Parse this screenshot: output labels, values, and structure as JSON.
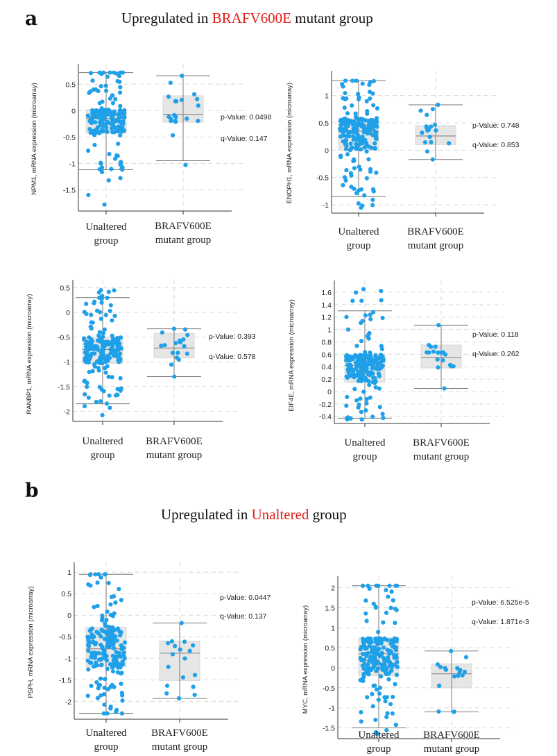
{
  "sections": [
    {
      "letter": "a",
      "title_pre": "Upregulated in ",
      "title_hl": "BRAFV600E",
      "title_post": " mutant group"
    },
    {
      "letter": "b",
      "title_pre": "Upregulated in ",
      "title_hl": "Unaltered",
      "title_post": " group"
    }
  ],
  "colors": {
    "point": "#1fa0e8",
    "box": "#e6e6e6",
    "whisker": "#777777",
    "highlight": "#e0201b",
    "grid": "#d9d9d9"
  },
  "chart_data": [
    {
      "type": "box-strip",
      "ylabel": "NPM1, mRNA expression (microarray)",
      "categories": [
        "Unaltered group",
        "BRAFV600E mutant group"
      ],
      "yticks": [
        0.5,
        0,
        -0.5,
        -1,
        -1.5
      ],
      "ylim": [
        -1.85,
        0.78
      ],
      "boxes": [
        {
          "whisker_low": -1.12,
          "q1": -0.43,
          "median": -0.15,
          "q3": 0.02,
          "whisker_high": 0.72,
          "n": 200,
          "min": -1.78,
          "max": 0.72
        },
        {
          "whisker_low": -0.95,
          "q1": -0.22,
          "median": -0.07,
          "q3": 0.28,
          "whisker_high": 0.66,
          "n": 20,
          "min": -1.03,
          "max": 0.66
        }
      ],
      "p_value": "p-Value: 0.0498",
      "q_value": "q-Value: 0.147"
    },
    {
      "type": "box-strip",
      "ylabel": "ENOPH1, mRNA expression (microarray)",
      "categories": [
        "Unaltered group",
        "BRAFV600E mutant group"
      ],
      "yticks": [
        1,
        0.5,
        0,
        -0.5,
        -1
      ],
      "ylim": [
        -1.1,
        1.35
      ],
      "boxes": [
        {
          "whisker_low": -0.85,
          "q1": 0.0,
          "median": 0.35,
          "q3": 0.58,
          "whisker_high": 1.27,
          "n": 200,
          "min": -1.05,
          "max": 1.27
        },
        {
          "whisker_low": -0.17,
          "q1": 0.1,
          "median": 0.26,
          "q3": 0.45,
          "whisker_high": 0.83,
          "n": 18,
          "min": -0.17,
          "max": 0.83
        }
      ],
      "p_value": "p-Value: 0.748",
      "q_value": "q-Value: 0.853"
    },
    {
      "type": "box-strip",
      "ylabel": "RANBP1, mRNA expression (microarray)",
      "categories": [
        "Unaltered group",
        "BRAFV600E mutant group"
      ],
      "yticks": [
        0.5,
        0,
        -0.5,
        -1,
        -1.5,
        -2
      ],
      "ylim": [
        -2.15,
        0.55
      ],
      "boxes": [
        {
          "whisker_low": -1.85,
          "q1": -1.03,
          "median": -0.75,
          "q3": -0.5,
          "whisker_high": 0.3,
          "n": 200,
          "min": -2.08,
          "max": 0.45
        },
        {
          "whisker_low": -1.3,
          "q1": -0.92,
          "median": -0.72,
          "q3": -0.42,
          "whisker_high": -0.33,
          "n": 18,
          "min": -1.3,
          "max": -0.33
        }
      ],
      "p_value": "p-Value: 0.393",
      "q_value": "q-Value: 0.578"
    },
    {
      "type": "box-strip",
      "ylabel": "EIF4E, mRNA expression (microarray)",
      "categories": [
        "Unaltered group",
        "BRAFV600E mutant group"
      ],
      "yticks": [
        1.6,
        1.4,
        1.2,
        1,
        0.8,
        0.6,
        0.4,
        0.2,
        0,
        -0.2,
        -0.4
      ],
      "ylim": [
        -0.47,
        1.7
      ],
      "boxes": [
        {
          "whisker_low": -0.43,
          "q1": 0.15,
          "median": 0.42,
          "q3": 0.6,
          "whisker_high": 1.3,
          "n": 200,
          "min": -0.45,
          "max": 1.65
        },
        {
          "whisker_low": 0.05,
          "q1": 0.38,
          "median": 0.55,
          "q3": 0.75,
          "whisker_high": 1.07,
          "n": 18,
          "min": 0.05,
          "max": 1.07
        }
      ],
      "p_value": "p-Value: 0.118",
      "q_value": "q-Value: 0.262"
    },
    {
      "type": "box-strip",
      "ylabel": "PSPH, mRNA expression (microarray)",
      "categories": [
        "Unaltered group",
        "BRAFV600E mutant group"
      ],
      "yticks": [
        1,
        0.5,
        0,
        -0.5,
        -1,
        -1.5,
        -2
      ],
      "ylim": [
        -2.35,
        1.1
      ],
      "boxes": [
        {
          "whisker_low": -2.28,
          "q1": -1.2,
          "median": -0.78,
          "q3": -0.28,
          "whisker_high": 0.95,
          "n": 200,
          "min": -2.28,
          "max": 0.95
        },
        {
          "whisker_low": -1.93,
          "q1": -1.52,
          "median": -0.88,
          "q3": -0.6,
          "whisker_high": -0.18,
          "n": 18,
          "min": -1.93,
          "max": -0.18
        }
      ],
      "p_value": "p-Value: 0.0447",
      "q_value": "q-Value: 0.137"
    },
    {
      "type": "box-strip",
      "ylabel": "MYC, mRNA expression (microarray)",
      "categories": [
        "Unaltered group",
        "BRAFV600E mutant group"
      ],
      "yticks": [
        2,
        1.5,
        1,
        0.5,
        0,
        -0.5,
        -1,
        -1.5
      ],
      "ylim": [
        -1.7,
        2.15
      ],
      "boxes": [
        {
          "whisker_low": -1.5,
          "q1": -0.2,
          "median": 0.35,
          "q3": 0.75,
          "whisker_high": 2.05,
          "n": 200,
          "min": -1.65,
          "max": 2.05
        },
        {
          "whisker_low": -1.1,
          "q1": -0.5,
          "median": -0.15,
          "q3": 0.1,
          "whisker_high": 0.42,
          "n": 18,
          "min": -1.1,
          "max": 0.42
        }
      ],
      "p_value": "p-Value: 6.525e-5",
      "q_value": "q-Value: 1.871e-3"
    }
  ]
}
